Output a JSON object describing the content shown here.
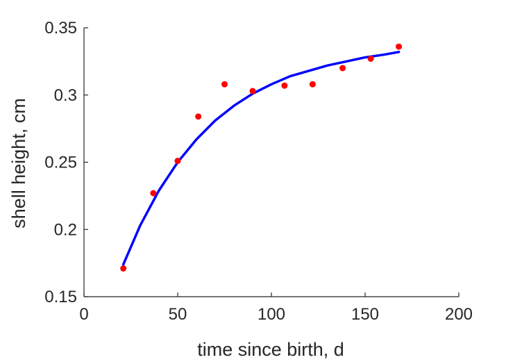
{
  "chart_data": {
    "type": "scatter",
    "xlabel": "time since birth, d",
    "ylabel": "shell height, cm",
    "xlim": [
      0,
      200
    ],
    "ylim": [
      0.15,
      0.35
    ],
    "xticks": [
      0,
      50,
      100,
      150,
      200
    ],
    "yticks": [
      0.15,
      0.2,
      0.25,
      0.3,
      0.35
    ],
    "xtick_labels": [
      "0",
      "50",
      "100",
      "150",
      "200"
    ],
    "ytick_labels": [
      "0.15",
      "0.2",
      "0.25",
      "0.3",
      "0.35"
    ],
    "grid": false,
    "series": [
      {
        "kind": "points",
        "color": "#ff0000",
        "x": [
          21,
          37,
          50,
          61,
          75,
          90,
          107,
          122,
          138,
          153,
          168
        ],
        "y": [
          0.171,
          0.227,
          0.251,
          0.284,
          0.308,
          0.303,
          0.307,
          0.308,
          0.32,
          0.327,
          0.336
        ]
      },
      {
        "kind": "line",
        "color": "#0000ff",
        "x": [
          21,
          30,
          40,
          50,
          60,
          70,
          80,
          90,
          100,
          110,
          120,
          130,
          140,
          150,
          160,
          168
        ],
        "y": [
          0.174,
          0.203,
          0.229,
          0.25,
          0.267,
          0.281,
          0.292,
          0.301,
          0.308,
          0.314,
          0.318,
          0.322,
          0.325,
          0.328,
          0.33,
          0.332
        ]
      }
    ]
  }
}
